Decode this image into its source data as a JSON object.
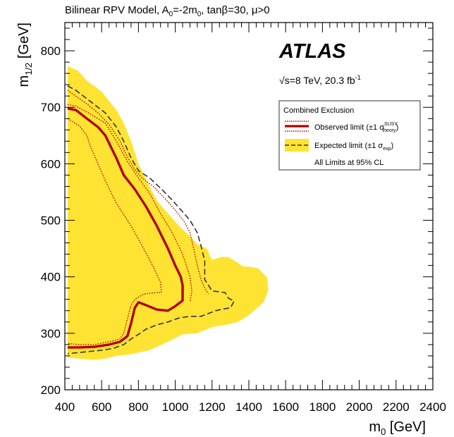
{
  "chart_data": {
    "type": "line",
    "title": "Bilinear RPV Model, A",
    "title_sub0": "0",
    "title_mid": "=-2m",
    "title_sub1": "0",
    "title_end": ", tanβ=30, μ>0",
    "xlabel_main": "m",
    "xlabel_sub": "0",
    "xlabel_unit": " [GeV]",
    "ylabel_main": "m",
    "ylabel_sub": "1/2",
    "ylabel_unit": " [GeV]",
    "xlim": [
      400,
      2400
    ],
    "ylim": [
      200,
      850
    ],
    "xticks": [
      400,
      600,
      800,
      1000,
      1200,
      1400,
      1600,
      1800,
      2000,
      2200,
      2400
    ],
    "xtick_labels": [
      "400",
      "600",
      "800",
      "1000",
      "1200",
      "1400",
      "1600",
      "1800",
      "2000",
      "2200",
      "2400"
    ],
    "yticks": [
      200,
      300,
      400,
      500,
      600,
      700,
      800
    ],
    "ytick_labels": [
      "200",
      "300",
      "400",
      "500",
      "600",
      "700",
      "800"
    ],
    "experiment": "ATLAS",
    "energy_text": "√s=8 TeV, 20.3 fb",
    "energy_sup": "-1",
    "legend": {
      "header": "Combined Exclusion",
      "observed": "Observed limit (±1 σ",
      "observed_sup": "SUSY",
      "observed_sub": "theory",
      "observed_end": ")",
      "expected": "Expected limit (±1 σ",
      "expected_sub": "exp",
      "expected_end": ")",
      "footer": "All Limits at 95% CL"
    },
    "colors": {
      "observed": "#b00000",
      "expected": "#333333",
      "band": "#ffe333"
    },
    "series": [
      {
        "role": "expected-band",
        "x": [
          415,
          420,
          470,
          520,
          600,
          680,
          720,
          760,
          800,
          860,
          900,
          960,
          1030,
          1080,
          1120,
          1170,
          1200,
          1250,
          1290,
          1340,
          1370,
          1400,
          1450,
          1500,
          1505,
          1480,
          1400,
          1340,
          1290,
          1200,
          1120,
          1040,
          960,
          860,
          760,
          680,
          620,
          560,
          480,
          415
        ],
        "y": [
          772,
          772,
          765,
          747,
          728,
          695,
          672,
          640,
          600,
          560,
          535,
          512,
          487,
          472,
          458,
          450,
          430,
          435,
          435,
          425,
          418,
          418,
          415,
          398,
          375,
          355,
          332,
          320,
          316,
          311,
          300,
          298,
          285,
          270,
          263,
          260,
          255,
          253,
          255,
          257
        ]
      },
      {
        "role": "expected",
        "x": [
          415,
          460,
          520,
          580,
          620,
          680,
          720,
          760,
          800,
          860,
          920,
          980,
          1040,
          1080,
          1120,
          1140,
          1160,
          1160,
          1200,
          1270,
          1290,
          1320,
          1300,
          1260,
          1220,
          1180,
          1140,
          1080,
          1020,
          960,
          900,
          840,
          800,
          760,
          720,
          660,
          600,
          540,
          480,
          415
        ],
        "y": [
          738,
          730,
          715,
          700,
          690,
          665,
          640,
          610,
          588,
          575,
          557,
          537,
          515,
          500,
          478,
          455,
          428,
          395,
          375,
          372,
          362,
          357,
          345,
          343,
          340,
          335,
          330,
          330,
          327,
          320,
          315,
          307,
          298,
          290,
          280,
          273,
          270,
          268,
          266,
          264
        ]
      },
      {
        "role": "expected-minus1",
        "x": [
          415,
          450,
          520,
          580,
          640,
          700,
          740,
          780,
          820,
          880,
          940,
          1000,
          1050,
          1080,
          1100,
          1120,
          1140,
          1160,
          1180
        ],
        "y": [
          730,
          722,
          706,
          690,
          670,
          640,
          612,
          590,
          575,
          560,
          540,
          518,
          497,
          478,
          450,
          420,
          395,
          380,
          370
        ]
      },
      {
        "role": "observed",
        "x": [
          415,
          460,
          520,
          580,
          620,
          680,
          720,
          780,
          840,
          900,
          960,
          1000,
          1030,
          1040,
          1040,
          1000,
          960,
          900,
          840,
          800,
          780,
          760,
          740,
          700,
          640,
          560,
          480,
          415
        ],
        "y": [
          698,
          695,
          680,
          665,
          650,
          610,
          580,
          555,
          525,
          490,
          450,
          420,
          400,
          385,
          358,
          348,
          340,
          342,
          350,
          355,
          345,
          318,
          295,
          285,
          280,
          276,
          275,
          275
        ]
      },
      {
        "role": "observed-plus1",
        "x": [
          415,
          460,
          540,
          620,
          680,
          740,
          800,
          860,
          920,
          980,
          1040,
          1080,
          1090,
          1080
        ],
        "y": [
          705,
          702,
          688,
          672,
          640,
          604,
          575,
          548,
          512,
          480,
          440,
          400,
          375,
          355
        ]
      },
      {
        "role": "observed-minus1",
        "x": [
          415,
          440,
          480,
          520,
          540,
          560,
          580,
          620,
          680,
          760,
          820,
          880,
          920,
          925,
          900,
          840,
          820,
          780,
          760,
          740,
          720,
          700,
          640,
          560,
          480,
          415
        ],
        "y": [
          680,
          675,
          667,
          650,
          630,
          615,
          600,
          570,
          530,
          490,
          455,
          418,
          390,
          372,
          372,
          370,
          368,
          360,
          350,
          325,
          300,
          290,
          285,
          280,
          280,
          282
        ]
      }
    ]
  }
}
